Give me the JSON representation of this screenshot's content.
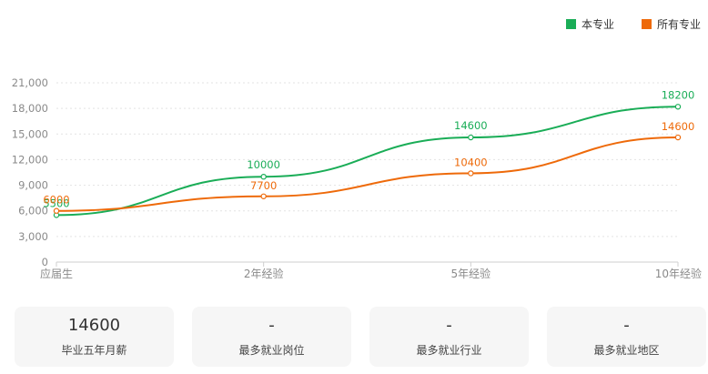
{
  "legend": {
    "items": [
      {
        "label": "本专业",
        "color": "#1aad57"
      },
      {
        "label": "所有专业",
        "color": "#ee6a0a"
      }
    ]
  },
  "chart_data": {
    "type": "line",
    "categories": [
      "应届生",
      "2年经验",
      "5年经验",
      "10年经验"
    ],
    "ylim": [
      0,
      21000
    ],
    "yticks": [
      0,
      3000,
      6000,
      9000,
      12000,
      15000,
      18000,
      21000
    ],
    "ytick_labels": [
      "0",
      "3,000",
      "6,000",
      "9,000",
      "12,000",
      "15,000",
      "18,000",
      "21,000"
    ],
    "grid": true,
    "legend_position": "top-right",
    "series": [
      {
        "name": "本专业",
        "color": "#1aad57",
        "values": [
          5500,
          10000,
          14600,
          18200
        ],
        "labels": [
          "5500",
          "10000",
          "14600",
          "18200"
        ]
      },
      {
        "name": "所有专业",
        "color": "#ee6a0a",
        "values": [
          6000,
          7700,
          10400,
          14600
        ],
        "labels": [
          "6000",
          "7700",
          "10400",
          "14600"
        ]
      }
    ]
  },
  "stats": [
    {
      "value": "14600",
      "label": "毕业五年月薪"
    },
    {
      "value": "-",
      "label": "最多就业岗位"
    },
    {
      "value": "-",
      "label": "最多就业行业"
    },
    {
      "value": "-",
      "label": "最多就业地区"
    }
  ]
}
